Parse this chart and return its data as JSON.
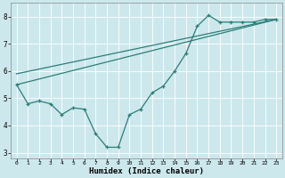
{
  "xlabel": "Humidex (Indice chaleur)",
  "bg_color": "#cce8ed",
  "grid_color": "#b0d0d8",
  "line_color": "#2d7d78",
  "xlim": [
    -0.5,
    23.5
  ],
  "ylim": [
    2.8,
    8.5
  ],
  "xticks": [
    0,
    1,
    2,
    3,
    4,
    5,
    6,
    7,
    8,
    9,
    10,
    11,
    12,
    13,
    14,
    15,
    16,
    17,
    18,
    19,
    20,
    21,
    22,
    23
  ],
  "yticks": [
    3,
    4,
    5,
    6,
    7,
    8
  ],
  "line1": {
    "x": [
      0,
      1,
      2,
      3,
      4,
      5,
      6,
      7,
      8,
      9,
      10,
      11,
      12,
      13,
      14,
      15,
      16,
      17,
      18,
      19,
      20,
      21,
      22,
      23
    ],
    "y": [
      5.5,
      4.8,
      4.9,
      4.8,
      4.4,
      4.65,
      4.6,
      3.7,
      3.2,
      3.2,
      4.4,
      4.6,
      5.2,
      5.45,
      6.0,
      6.65,
      7.65,
      8.05,
      7.8,
      7.8,
      7.8,
      7.8,
      7.9,
      7.9
    ]
  },
  "line2": {
    "x": [
      0,
      23
    ],
    "y": [
      5.5,
      7.9
    ]
  },
  "line3": {
    "x": [
      0,
      23
    ],
    "y": [
      5.9,
      7.9
    ]
  }
}
